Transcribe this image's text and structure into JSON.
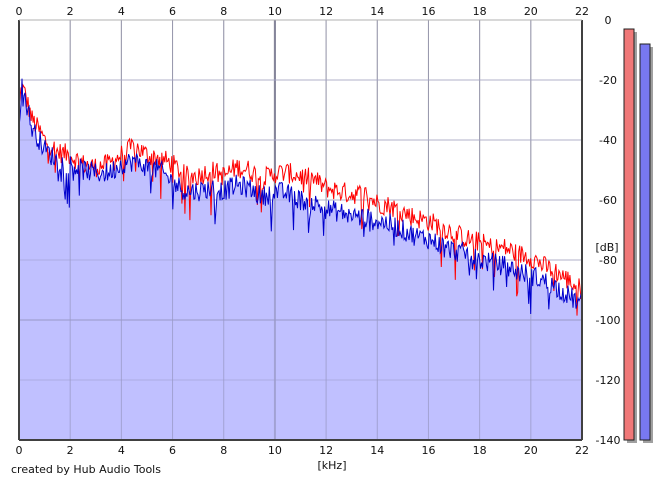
{
  "footer": {
    "credit": "created by Hub Audio Tools"
  },
  "chart_data": {
    "type": "area",
    "xlabel": "[kHz]",
    "ylabel": "[dB]",
    "xlim": [
      0,
      22
    ],
    "ylim": [
      -140,
      0
    ],
    "x_ticks": [
      0,
      2,
      4,
      6,
      8,
      10,
      12,
      14,
      16,
      18,
      20,
      22
    ],
    "y_ticks": [
      0,
      -20,
      -40,
      -60,
      -80,
      -100,
      -120,
      -140
    ],
    "grid": true,
    "x_axis_labels_top_and_bottom": true,
    "y_axis_side": "right",
    "series": [
      {
        "color": "#ff0000",
        "x": [
          0,
          0.1,
          0.25,
          0.5,
          0.8,
          1,
          1.5,
          2,
          2.5,
          3,
          3.5,
          4,
          4.5,
          5,
          5.5,
          6,
          6.5,
          7,
          7.5,
          8,
          8.5,
          9,
          9.5,
          10,
          10.5,
          11,
          11.5,
          12,
          12.5,
          13,
          13.5,
          14,
          14.5,
          15,
          15.5,
          16,
          16.5,
          17,
          17.5,
          18,
          18.5,
          19,
          19.5,
          20,
          20.5,
          21,
          21.5,
          22
        ],
        "y": [
          -30,
          -22,
          -25,
          -33,
          -37,
          -40,
          -44,
          -45,
          -48,
          -49,
          -48,
          -45,
          -42,
          -45,
          -46,
          -48,
          -52,
          -52,
          -50,
          -52,
          -49,
          -50,
          -53,
          -51,
          -51,
          -52,
          -53,
          -56,
          -57,
          -58,
          -58,
          -61,
          -62,
          -64,
          -66,
          -67,
          -69,
          -71,
          -73,
          -74,
          -76,
          -76,
          -78,
          -79,
          -82,
          -84,
          -87,
          -90
        ]
      },
      {
        "color": "#0000cc",
        "x": [
          0,
          0.1,
          0.25,
          0.5,
          0.8,
          1,
          1.5,
          2,
          2.5,
          3,
          3.5,
          4,
          4.5,
          5,
          5.5,
          6,
          6.5,
          7,
          7.5,
          8,
          8.5,
          9,
          9.5,
          10,
          10.5,
          11,
          11.5,
          12,
          12.5,
          13,
          13.5,
          14,
          14.5,
          15,
          15.5,
          16,
          16.5,
          17,
          17.5,
          18,
          18.5,
          19,
          19.5,
          20,
          20.5,
          21,
          21.5,
          22
        ],
        "y": [
          -35,
          -22,
          -26,
          -36,
          -40,
          -43,
          -47,
          -48,
          -50,
          -51,
          -51,
          -48,
          -47,
          -49,
          -50,
          -54,
          -57,
          -57,
          -56,
          -57,
          -55,
          -56,
          -59,
          -57,
          -58,
          -60,
          -61,
          -63,
          -64,
          -65,
          -66,
          -67,
          -68,
          -70,
          -72,
          -73,
          -75,
          -77,
          -78,
          -80,
          -81,
          -82,
          -84,
          -85,
          -87,
          -89,
          -92,
          -95
        ]
      }
    ],
    "fill_color": "#c0c0ff",
    "level_meters": [
      {
        "color": "#f07878",
        "level_db": -3
      },
      {
        "color": "#7878f0",
        "level_db": -8
      }
    ]
  }
}
